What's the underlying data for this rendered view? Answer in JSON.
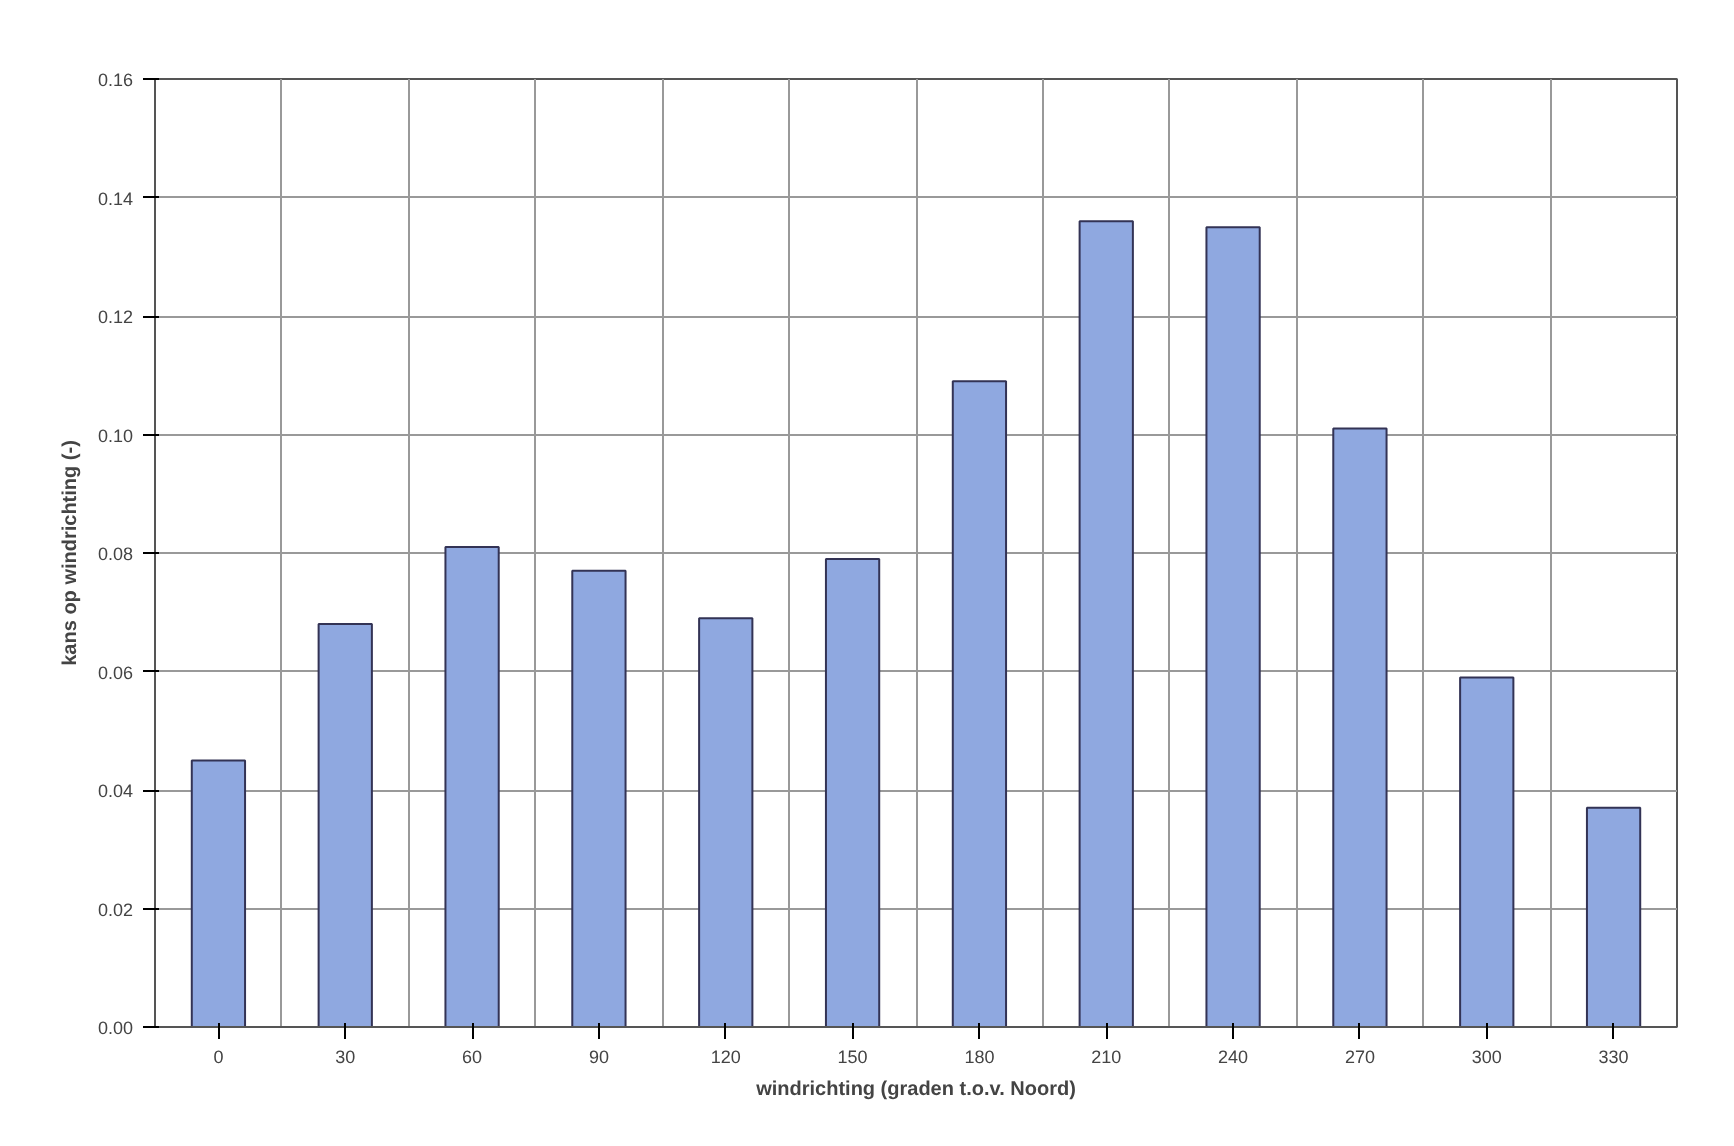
{
  "chart_data": {
    "type": "bar",
    "xlabel": "windrichting (graden t.o.v. Noord)",
    "ylabel": "kans op windrichting (-)",
    "categories": [
      "0",
      "30",
      "60",
      "90",
      "120",
      "150",
      "180",
      "210",
      "240",
      "270",
      "300",
      "330"
    ],
    "values": [
      0.045,
      0.068,
      0.081,
      0.077,
      0.069,
      0.079,
      0.109,
      0.136,
      0.135,
      0.101,
      0.059,
      0.037
    ],
    "color": "#8fa8e0",
    "ylim": [
      0,
      0.16
    ],
    "yticks": [
      {
        "value": 0,
        "label": "0.00"
      },
      {
        "value": 0.02,
        "label": "0.02"
      },
      {
        "value": 0.04,
        "label": "0.04"
      },
      {
        "value": 0.06,
        "label": "0.06"
      },
      {
        "value": 0.08,
        "label": "0.08"
      },
      {
        "value": 0.1,
        "label": "0.10"
      },
      {
        "value": 0.12,
        "label": "0.12"
      },
      {
        "value": 0.14,
        "label": "0.14"
      },
      {
        "value": 0.16,
        "label": "0.16"
      }
    ],
    "grid": true
  }
}
